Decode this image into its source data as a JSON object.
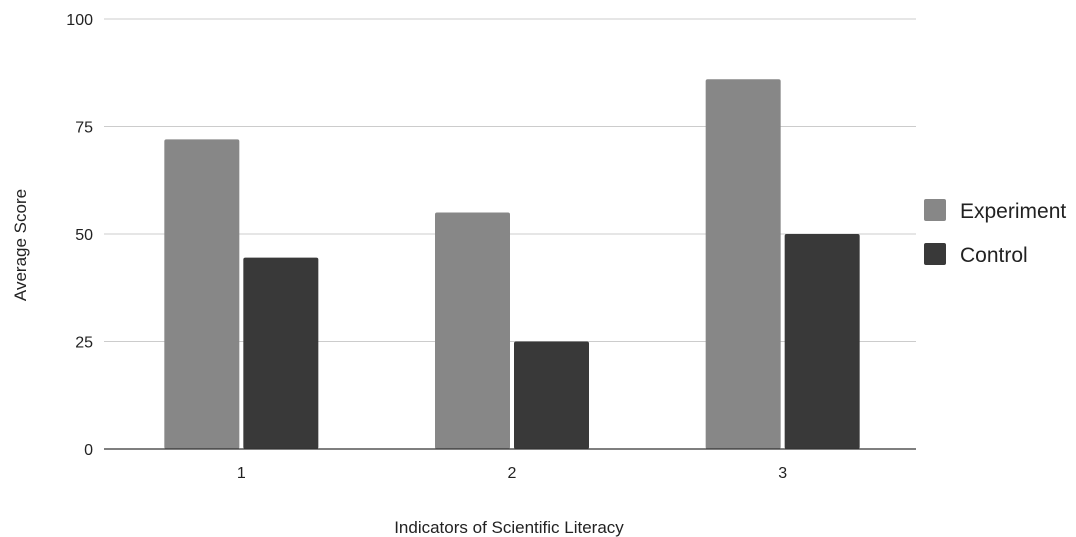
{
  "chart_data": {
    "type": "bar",
    "title": "",
    "xlabel": "Indicators of Scientific Literacy",
    "ylabel": "Average Score",
    "categories": [
      "1",
      "2",
      "3"
    ],
    "series": [
      {
        "name": "Experiment",
        "values": [
          72,
          55,
          86
        ],
        "color": "#878787"
      },
      {
        "name": "Control",
        "values": [
          44.5,
          25,
          50
        ],
        "color": "#393939"
      }
    ],
    "ylim": [
      0,
      100
    ],
    "yticks": [
      "0",
      "25",
      "50",
      "75",
      "100"
    ],
    "grid": true,
    "legend_position": "right"
  }
}
